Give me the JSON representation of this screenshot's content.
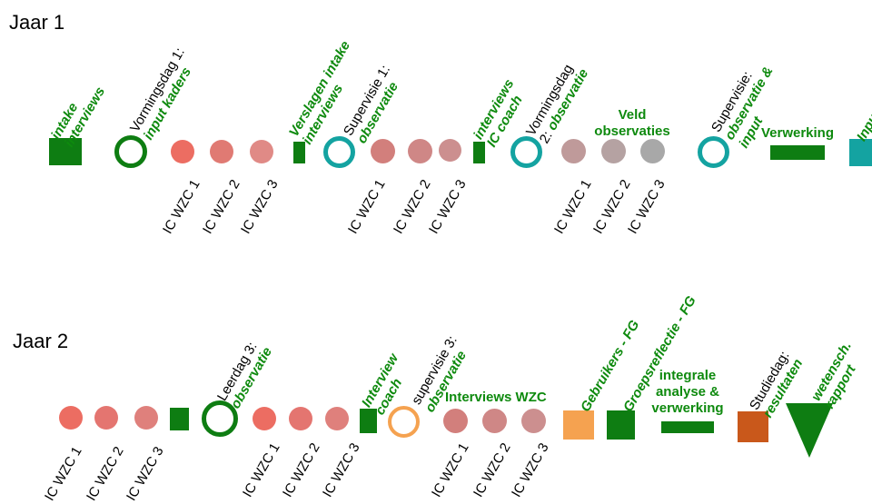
{
  "years": {
    "y1": "Jaar 1",
    "y2": "Jaar 2"
  },
  "labels": {
    "intake": [
      "intake",
      "interviews"
    ],
    "vorming1": [
      "Vormingsdag 1:",
      "input kaders"
    ],
    "verslagen": [
      "Verslagen  intake",
      "interviews"
    ],
    "supervisie1_pre": "Supervisie 1:",
    "supervisie1_bold": "observatie",
    "interviews_ic": [
      "interviews",
      "IC coach"
    ],
    "vorming2_pre": [
      "Vormingsdag",
      "2: "
    ],
    "vorming2_bold": "observatie",
    "veld": [
      "Veld",
      "observaties"
    ],
    "supervisie2_pre": "Supervisie:",
    "supervisie2_bold": [
      "observatie &",
      "input"
    ],
    "verwerking": "Verwerking",
    "input": "Input",
    "leerdag3_pre": "Leerdag 3:",
    "leerdag3_bold": "observatie",
    "interview_coach": [
      "Interview",
      "coach"
    ],
    "supervisie3_pre": "supervisie 3:",
    "supervisie3_bold": "observatie",
    "interviews_wzc": "Interviews WZC",
    "gebruikers": "Gebruikers - FG",
    "groepsreflectie": "Groepsreflectie - FG",
    "integrale": [
      "integrale",
      "analyse &",
      "verwerking"
    ],
    "studiedag_pre": "Studiedag:",
    "studiedag_bold": "resultaten",
    "wetensch": [
      "wetensch.",
      "rapport"
    ]
  },
  "ic": {
    "c1": "IC WZC 1",
    "c2": "IC WZC 2",
    "c3": "IC WZC 3"
  },
  "colors": {
    "green": "#0e7d12",
    "green_text": "#0e8a0e",
    "teal": "#14a3a1",
    "salmon": "#ec6d62",
    "salmon2": "#e07a73",
    "mauve": "#cf8786",
    "taupe": "#b59c9c",
    "grey": "#a8a8a8",
    "orange": "#f5a250",
    "rust": "#c9581b"
  }
}
